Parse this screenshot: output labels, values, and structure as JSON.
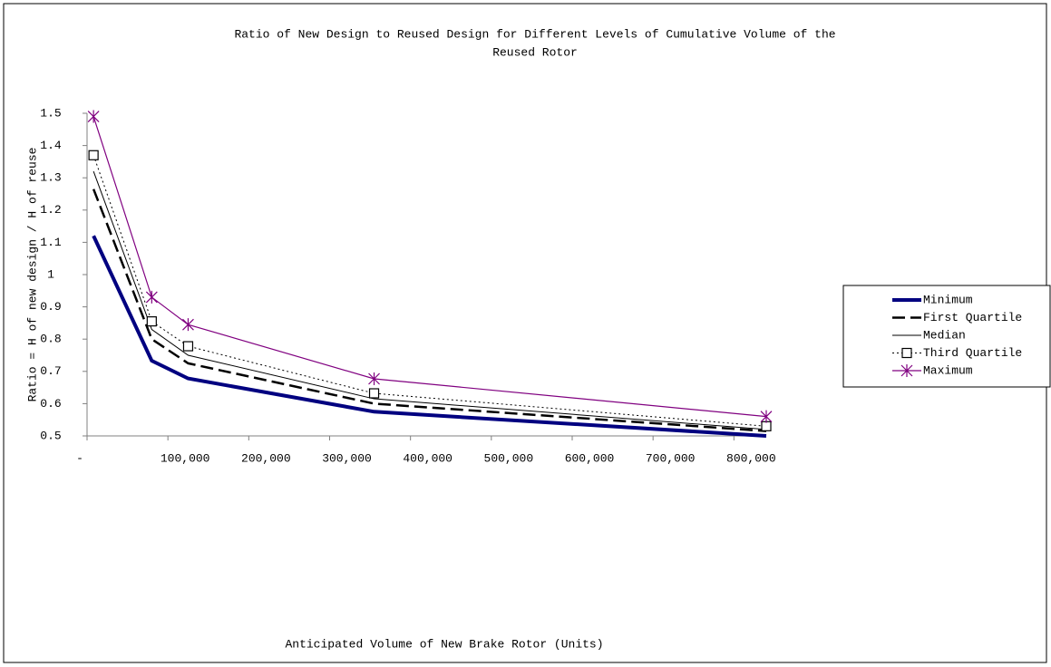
{
  "chart_data": {
    "type": "line",
    "title": [
      "Ratio of New Design to Reused Design for Different Levels of Cumulative Volume of the",
      "Reused Rotor"
    ],
    "x_label": "Anticipated Volume of New Brake Rotor (Units)",
    "y_label": "Ratio = H of new design / H of reuse",
    "x": [
      8000,
      80000,
      125000,
      355000,
      840000
    ],
    "xlim": [
      0,
      840000
    ],
    "xticks": [
      {
        "value": 0,
        "label": "-"
      },
      {
        "value": 100000,
        "label": "100,000"
      },
      {
        "value": 200000,
        "label": "200,000"
      },
      {
        "value": 300000,
        "label": "300,000"
      },
      {
        "value": 400000,
        "label": "400,000"
      },
      {
        "value": 500000,
        "label": "500,000"
      },
      {
        "value": 600000,
        "label": "600,000"
      },
      {
        "value": 700000,
        "label": "700,000"
      },
      {
        "value": 800000,
        "label": "800,000"
      }
    ],
    "ylim": [
      0.5,
      1.5
    ],
    "yticks": [
      0.5,
      0.6,
      0.7,
      0.8,
      0.9,
      1,
      1.1,
      1.2,
      1.3,
      1.4,
      1.5
    ],
    "grid": false,
    "legend": "right",
    "series": [
      {
        "name": "Minimum",
        "color": "#000080",
        "width": 4,
        "dash": "none",
        "marker": "none",
        "values": [
          1.12,
          0.733,
          0.678,
          0.575,
          0.5
        ]
      },
      {
        "name": "First Quartile",
        "color": "#000000",
        "width": 2.5,
        "dash": "14 6",
        "marker": "none",
        "values": [
          1.265,
          0.8,
          0.725,
          0.6,
          0.515
        ]
      },
      {
        "name": "Median",
        "color": "#000000",
        "width": 1,
        "dash": "none",
        "marker": "none",
        "values": [
          1.32,
          0.83,
          0.75,
          0.615,
          0.52
        ]
      },
      {
        "name": "Third Quartile",
        "color": "#000000",
        "width": 1,
        "dash": "2 3",
        "marker": "square",
        "values": [
          1.37,
          0.855,
          0.778,
          0.632,
          0.53
        ]
      },
      {
        "name": "Maximum",
        "color": "#800080",
        "width": 1.2,
        "dash": "none",
        "marker": "star",
        "values": [
          1.49,
          0.93,
          0.845,
          0.677,
          0.56
        ]
      }
    ]
  }
}
